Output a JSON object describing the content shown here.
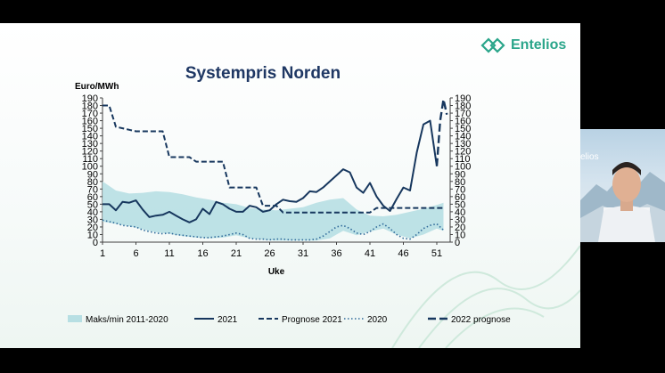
{
  "brand": {
    "name": "Entelios",
    "color": "#2aa58a"
  },
  "video_tile": {
    "label": "elios"
  },
  "chart_data": {
    "type": "line",
    "title": "Systempris Norden",
    "ylabel": "Euro/MWh",
    "xlabel": "Uke",
    "x_ticks": [
      1,
      6,
      11,
      16,
      21,
      26,
      31,
      36,
      41,
      46,
      51
    ],
    "y_ticks": [
      0,
      10,
      20,
      30,
      40,
      50,
      60,
      70,
      80,
      90,
      100,
      110,
      120,
      130,
      140,
      150,
      160,
      170,
      180,
      190
    ],
    "xlim": [
      1,
      53
    ],
    "ylim": [
      0,
      190
    ],
    "legend_position": "bottom",
    "series": [
      {
        "name": "Maks/min 2011-2020",
        "kind": "band",
        "color": "#b7dfe3",
        "x": [
          1,
          3,
          5,
          7,
          9,
          11,
          13,
          15,
          17,
          19,
          21,
          23,
          25,
          27,
          29,
          31,
          33,
          35,
          37,
          39,
          41,
          43,
          45,
          47,
          49,
          51,
          52
        ],
        "lower": [
          27,
          24,
          21,
          17,
          13,
          11,
          8,
          6,
          5,
          6,
          9,
          5,
          3,
          2,
          2,
          2,
          2,
          5,
          15,
          9,
          14,
          18,
          10,
          5,
          10,
          18,
          15
        ],
        "upper": [
          80,
          68,
          64,
          65,
          67,
          66,
          63,
          59,
          56,
          52,
          50,
          45,
          43,
          42,
          44,
          46,
          52,
          56,
          58,
          43,
          35,
          34,
          36,
          40,
          44,
          49,
          52
        ]
      },
      {
        "name": "2021",
        "kind": "line",
        "color": "#17375e",
        "dash": "solid",
        "x": [
          1,
          2,
          3,
          4,
          5,
          6,
          7,
          8,
          9,
          10,
          11,
          12,
          13,
          14,
          15,
          16,
          17,
          18,
          19,
          20,
          21,
          22,
          23,
          24,
          25,
          26,
          27,
          28,
          29,
          30,
          31,
          32,
          33,
          34,
          35,
          36,
          37,
          38,
          39,
          40,
          41,
          42,
          43,
          44,
          45,
          46,
          47,
          48,
          49,
          50,
          51
        ],
        "values": [
          50,
          50,
          42,
          53,
          52,
          55,
          43,
          33,
          35,
          36,
          40,
          35,
          30,
          26,
          30,
          44,
          37,
          53,
          50,
          44,
          40,
          40,
          48,
          46,
          40,
          42,
          50,
          56,
          54,
          53,
          58,
          67,
          66,
          72,
          80,
          88,
          96,
          92,
          72,
          65,
          78,
          60,
          48,
          41,
          57,
          72,
          68,
          118,
          155,
          160,
          100
        ]
      },
      {
        "name": "Prognose 2021",
        "kind": "line",
        "color": "#17375e",
        "dash": "dashed",
        "x": [
          1,
          2,
          3,
          4,
          5,
          6,
          7,
          8,
          9,
          10,
          11,
          12,
          13,
          14,
          15,
          16,
          17,
          18,
          19,
          20,
          21,
          22,
          23,
          24,
          25,
          26,
          27,
          28,
          29,
          30,
          31,
          32,
          33,
          34,
          35,
          36,
          37,
          38,
          39,
          40,
          41,
          42,
          43,
          44,
          45,
          46,
          47,
          48,
          49,
          50,
          51,
          52
        ],
        "values": [
          180,
          180,
          152,
          150,
          148,
          146,
          146,
          146,
          146,
          146,
          112,
          112,
          112,
          112,
          106,
          106,
          106,
          106,
          106,
          72,
          72,
          72,
          72,
          72,
          48,
          48,
          48,
          39,
          39,
          39,
          39,
          39,
          39,
          39,
          39,
          39,
          39,
          39,
          39,
          39,
          39,
          45,
          45,
          45,
          45,
          45,
          45,
          45,
          45,
          45,
          45,
          45
        ]
      },
      {
        "name": "2020",
        "kind": "line",
        "color": "#2f6a9a",
        "dash": "dotted",
        "x": [
          1,
          2,
          3,
          4,
          5,
          6,
          7,
          8,
          9,
          10,
          11,
          12,
          13,
          14,
          15,
          16,
          17,
          18,
          19,
          20,
          21,
          22,
          23,
          24,
          25,
          26,
          27,
          28,
          29,
          30,
          31,
          32,
          33,
          34,
          35,
          36,
          37,
          38,
          39,
          40,
          41,
          42,
          43,
          44,
          45,
          46,
          47,
          48,
          49,
          50,
          51,
          52
        ],
        "values": [
          29,
          27,
          25,
          22,
          21,
          20,
          16,
          14,
          12,
          11,
          12,
          10,
          9,
          8,
          7,
          6,
          6,
          7,
          8,
          10,
          12,
          10,
          5,
          4,
          4,
          3,
          4,
          4,
          3,
          3,
          3,
          3,
          4,
          8,
          14,
          20,
          22,
          18,
          12,
          10,
          14,
          20,
          24,
          18,
          10,
          5,
          4,
          10,
          18,
          22,
          24,
          16
        ]
      },
      {
        "name": "2022 prognose",
        "kind": "line",
        "color": "#17375e",
        "dash": "longdash",
        "x": [
          51,
          51.5,
          52,
          52.5
        ],
        "values": [
          100,
          160,
          188,
          168
        ]
      }
    ]
  }
}
